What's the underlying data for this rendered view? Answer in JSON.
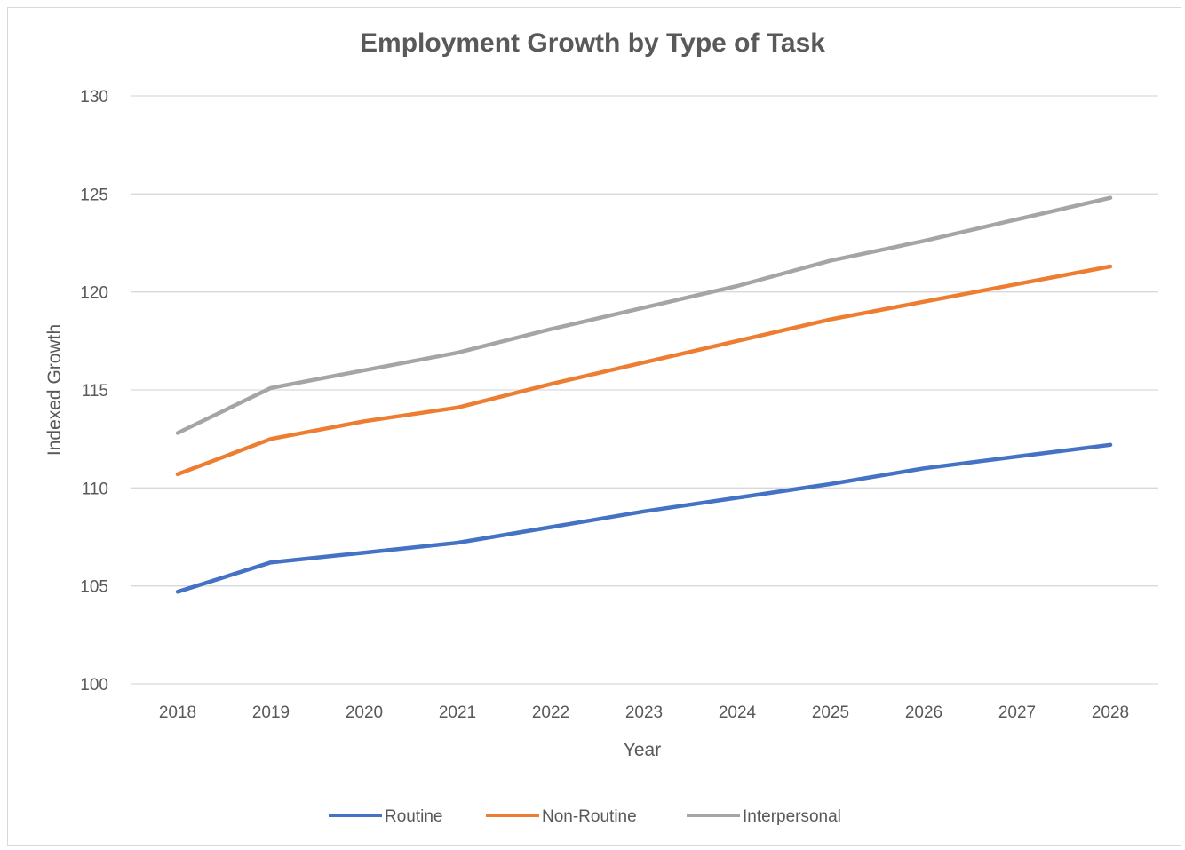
{
  "chart_data": {
    "type": "line",
    "title": "Employment Growth by Type of Task",
    "xlabel": "Year",
    "ylabel": "Indexed Growth",
    "categories": [
      "2018",
      "2019",
      "2020",
      "2021",
      "2022",
      "2023",
      "2024",
      "2025",
      "2026",
      "2027",
      "2028"
    ],
    "yticks": [
      "100",
      "105",
      "110",
      "115",
      "120",
      "125",
      "130"
    ],
    "ylim": [
      100,
      130
    ],
    "grid": "horizontal",
    "legend_position": "bottom",
    "series": [
      {
        "name": "Routine",
        "color": "#4472C4",
        "values": [
          104.7,
          106.2,
          106.7,
          107.2,
          108.0,
          108.8,
          109.5,
          110.2,
          111.0,
          111.6,
          112.2
        ]
      },
      {
        "name": "Non-Routine",
        "color": "#ED7D31",
        "values": [
          110.7,
          112.5,
          113.4,
          114.1,
          115.3,
          116.4,
          117.5,
          118.6,
          119.5,
          120.4,
          121.3
        ]
      },
      {
        "name": "Interpersonal",
        "color": "#A5A5A5",
        "values": [
          112.8,
          115.1,
          116.0,
          116.9,
          118.1,
          119.2,
          120.3,
          121.6,
          122.6,
          123.7,
          124.8
        ]
      }
    ]
  }
}
